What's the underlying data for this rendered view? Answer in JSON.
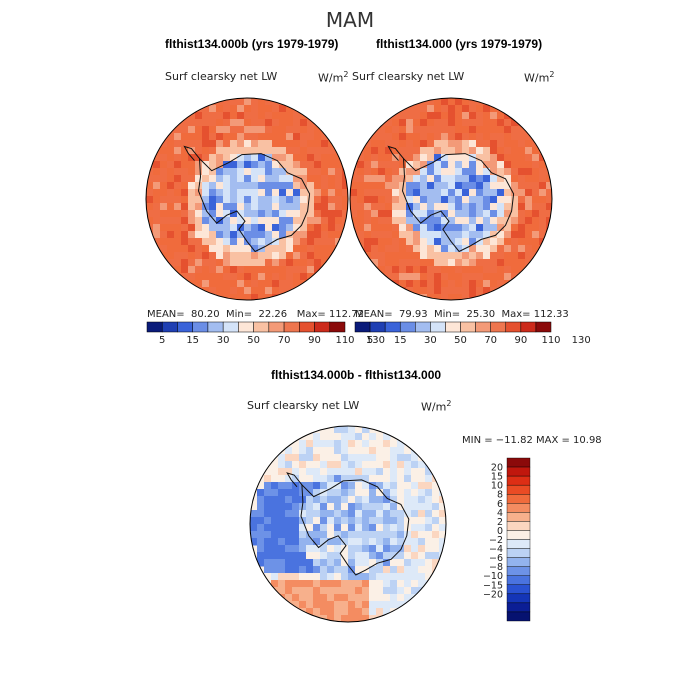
{
  "page": {
    "season": "MAM"
  },
  "chart_data": [
    {
      "type": "heatmap",
      "projection": "south-polar-stereographic",
      "title": "flthist134.000b (yrs 1979-1979)",
      "variable": "Surf clearsky net LW",
      "units_base": "W/m",
      "units_exp": "2",
      "stats": {
        "mean_label": "MEAN=",
        "mean": "80.20",
        "min_label": "Min=",
        "min": "22.26",
        "max_label": "Max=",
        "max": "112.72"
      },
      "colorbar": {
        "orientation": "horizontal",
        "levels": [
          5,
          15,
          30,
          50,
          70,
          90,
          110,
          130
        ],
        "tick_labels": [
          "5",
          "15",
          "30",
          "50",
          "70",
          "90",
          "110",
          "130"
        ],
        "colors": [
          "#0a1b7a",
          "#1f3fb3",
          "#3a63d9",
          "#6b8ee6",
          "#a3bdf0",
          "#d4e3f8",
          "#fde6d7",
          "#f9c1a3",
          "#f39a78",
          "#ee764f",
          "#e5512f",
          "#cc2a1b",
          "#8b0a0a"
        ]
      }
    },
    {
      "type": "heatmap",
      "projection": "south-polar-stereographic",
      "title": "flthist134.000 (yrs 1979-1979)",
      "variable": "Surf clearsky net LW",
      "units_base": "W/m",
      "units_exp": "2",
      "stats": {
        "mean_label": "MEAN=",
        "mean": "79.93",
        "min_label": "Min=",
        "min": "25.30",
        "max_label": "Max=",
        "max": "112.33"
      },
      "colorbar": {
        "orientation": "horizontal",
        "levels": [
          5,
          15,
          30,
          50,
          70,
          90,
          110,
          130
        ],
        "tick_labels": [
          "5",
          "15",
          "30",
          "50",
          "70",
          "90",
          "110",
          "130"
        ],
        "colors": [
          "#0a1b7a",
          "#1f3fb3",
          "#3a63d9",
          "#6b8ee6",
          "#a3bdf0",
          "#d4e3f8",
          "#fde6d7",
          "#f9c1a3",
          "#f39a78",
          "#ee764f",
          "#e5512f",
          "#cc2a1b",
          "#8b0a0a"
        ]
      }
    },
    {
      "type": "heatmap",
      "projection": "south-polar-stereographic",
      "title": "flthist134.000b - flthist134.000",
      "variable": "Surf clearsky net LW",
      "units_base": "W/m",
      "units_exp": "2",
      "stats": {
        "text": "MIN = −11.82 MAX =  10.98",
        "min": -11.82,
        "max": 10.98
      },
      "colorbar": {
        "orientation": "vertical",
        "levels": [
          20,
          15,
          10,
          8,
          6,
          4,
          2,
          0,
          -2,
          -4,
          -6,
          -8,
          -10,
          -15,
          -20
        ],
        "tick_labels": [
          "20",
          "15",
          "10",
          "8",
          "6",
          "4",
          "2",
          "0",
          "−2",
          "−4",
          "−6",
          "−8",
          "−10",
          "−15",
          "−20"
        ],
        "colors": [
          "#8b0a0a",
          "#c0170d",
          "#dd2e15",
          "#ea4b24",
          "#f06b3c",
          "#f48c61",
          "#f7b08c",
          "#fbd6c0",
          "#fbf0e6",
          "#dde9f8",
          "#bcd2f4",
          "#93b3ee",
          "#6d92e7",
          "#4a73df",
          "#2a52d2",
          "#1435b7",
          "#0b1e95",
          "#061270"
        ]
      }
    }
  ]
}
